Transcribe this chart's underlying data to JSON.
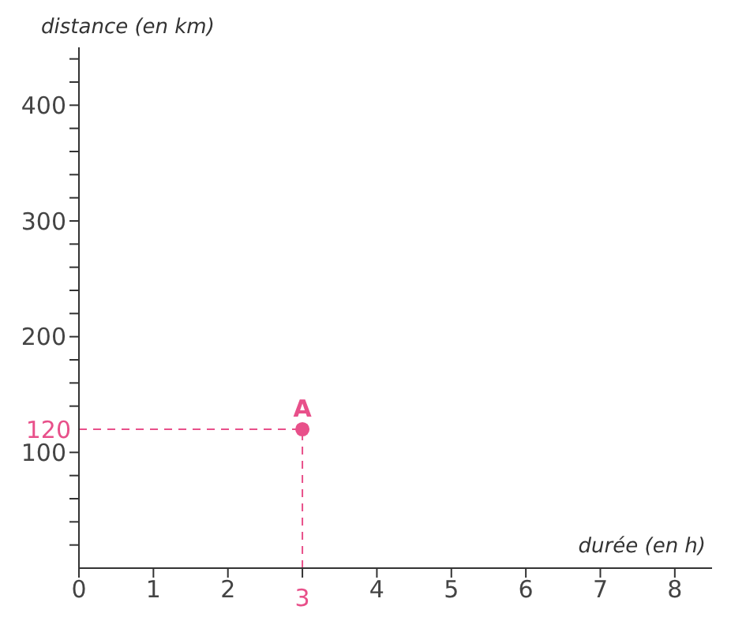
{
  "chart_data": {
    "type": "scatter",
    "xlabel": "durée (en h)",
    "ylabel": "distance (en km)",
    "x": [
      3
    ],
    "series": [
      {
        "color": "#e8508a",
        "values": [
          120
        ]
      }
    ],
    "marker": "circle",
    "xlim": [
      0,
      8.5
    ],
    "ylim": [
      0,
      450
    ],
    "xticks": [
      0,
      1,
      2,
      {
        "value": 3,
        "label": null
      },
      4,
      5,
      6,
      7,
      8
    ],
    "yticks": [
      {
        "value": 20,
        "label": null
      },
      {
        "value": 40,
        "label": null
      },
      {
        "value": 60,
        "label": null
      },
      {
        "value": 80,
        "label": null
      },
      100,
      {
        "value": 140,
        "label": null
      },
      {
        "value": 160,
        "label": null
      },
      {
        "value": 180,
        "label": null
      },
      200,
      {
        "value": 220,
        "label": null
      },
      {
        "value": 240,
        "label": null
      },
      {
        "value": 260,
        "label": null
      },
      {
        "value": 280,
        "label": null
      },
      300,
      {
        "value": 320,
        "label": null
      },
      {
        "value": 340,
        "label": null
      },
      {
        "value": 360,
        "label": null
      },
      {
        "value": 380,
        "label": null
      },
      400,
      {
        "value": 420,
        "label": null
      },
      {
        "value": 440,
        "label": null
      }
    ],
    "ref_lines": [
      {
        "axis": "y",
        "value": 120,
        "label": "120",
        "color": "#e8508a",
        "line_style": "dashed"
      },
      {
        "axis": "x",
        "value": 3,
        "label": "3",
        "color": "#e8508a",
        "line_style": "dashed"
      }
    ],
    "annotations": [
      {
        "text": "A",
        "x": 3,
        "y": 120
      }
    ],
    "grid": false,
    "legend": false
  }
}
